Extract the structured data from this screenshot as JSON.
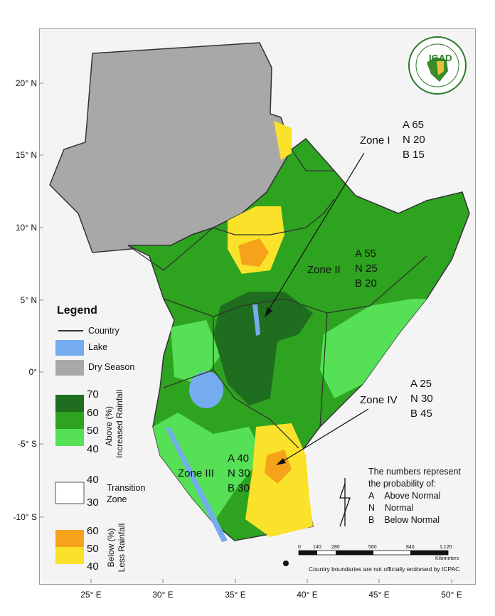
{
  "map": {
    "lat_labels": [
      "20° N",
      "15° N",
      "10° N",
      "5° N",
      "0°",
      "-5° S",
      "-10° S"
    ],
    "lon_labels": [
      "25° E",
      "30° E",
      "35° E",
      "40° E",
      "45° E",
      "50° E"
    ]
  },
  "zones": [
    {
      "name": "Zone I",
      "A": "A 65",
      "N": "N 20",
      "B": "B 15"
    },
    {
      "name": "Zone II",
      "A": "A 55",
      "N": "N 25",
      "B": "B 20"
    },
    {
      "name": "Zone III",
      "A": "A 40",
      "N": "N 30",
      "B": "B 30"
    },
    {
      "name": "Zone IV",
      "A": "A 25",
      "N": "N 30",
      "B": "B 45"
    }
  ],
  "legend": {
    "title": "Legend",
    "country": "Country",
    "lake": "Lake",
    "dry": "Dry Season",
    "above_values": [
      "70",
      "60",
      "50",
      "40"
    ],
    "above_label_1": "Above (%)",
    "above_label_2": "Increased Rainfall",
    "transition_values": [
      "40",
      "30"
    ],
    "transition_label_1": "Transition",
    "transition_label_2": "Zone",
    "below_values": [
      "60",
      "50",
      "40"
    ],
    "below_label_1": "Below (%)",
    "below_label_2": "Less Rainfall"
  },
  "note": {
    "line1": "The numbers represent",
    "line2": "the probability of:",
    "a_key": "A",
    "a_text": "Above Normal",
    "n_key": "N",
    "n_text": "Normal",
    "b_key": "B",
    "b_text": "Below Normal"
  },
  "scalebar": {
    "ticks": [
      "0",
      "140",
      "280",
      "560",
      "840",
      "1,120"
    ],
    "unit": "Kilometers"
  },
  "disclaimer": "Country boundaries are not officially endorsed by ICPAC",
  "logo": {
    "text": "IGAD",
    "ring_text": "INTERGOVERNMENTAL AUTHORITY ON DEVELOPMENT"
  },
  "colors": {
    "dark_green": "#1f6e1f",
    "mid_green": "#2ea31f",
    "light_green": "#55e055",
    "dry_gray": "#a8a8a8",
    "lake_blue": "#74acef",
    "orange": "#f6a21a",
    "yellow": "#fbe22a"
  }
}
